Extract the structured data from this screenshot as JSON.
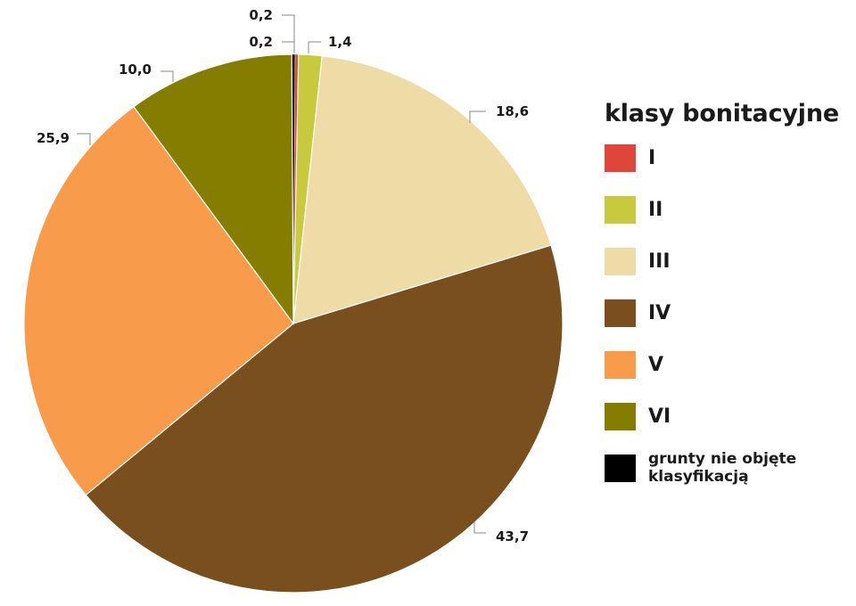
{
  "chart_data": {
    "type": "pie",
    "title": "",
    "legend_title": "klasy bonitacyjne",
    "legend_position": "right",
    "slices": [
      {
        "name": "I",
        "value": 0.2,
        "label": "0,2",
        "color": "#e0453a"
      },
      {
        "name": "II",
        "value": 1.4,
        "label": "1,4",
        "color": "#c8c93c"
      },
      {
        "name": "III",
        "value": 18.6,
        "label": "18,6",
        "color": "#efdba5"
      },
      {
        "name": "IV",
        "value": 43.7,
        "label": "43,7",
        "color": "#7a4f1e"
      },
      {
        "name": "V",
        "value": 25.9,
        "label": "25,9",
        "color": "#f89b4b"
      },
      {
        "name": "VI",
        "value": 10.0,
        "label": "10,0",
        "color": "#857d00"
      },
      {
        "name": "grunty nie objęte klasyfikacją",
        "value": 0.2,
        "label": "0,2",
        "color": "#000000"
      }
    ]
  }
}
